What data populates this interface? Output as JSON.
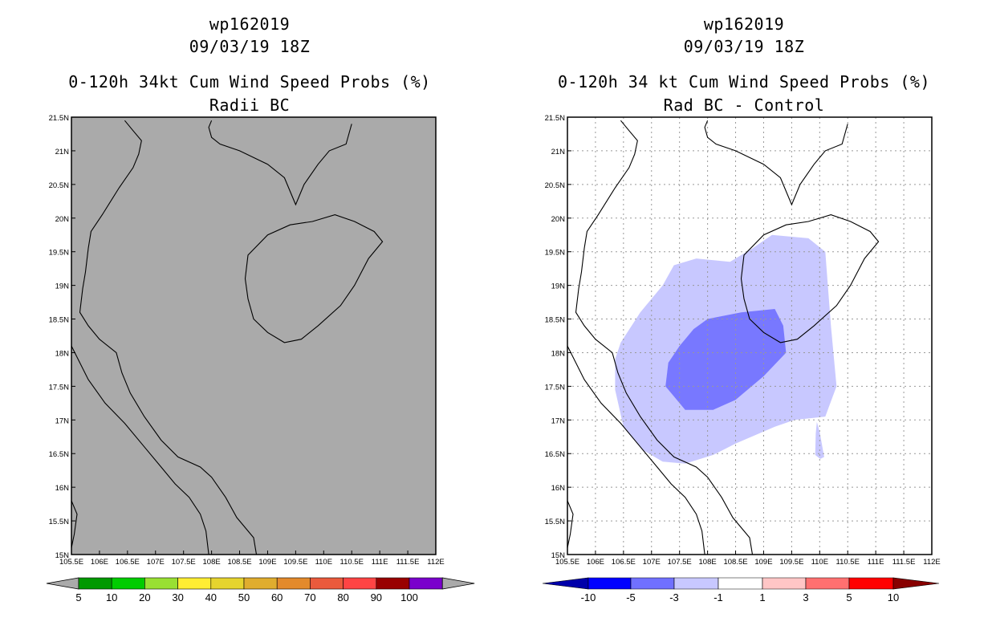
{
  "left_panel": {
    "storm_id": "wp162019",
    "datetime": "09/03/19 18Z",
    "title_line1": "0-120h 34kt Cum Wind Speed Probs (%)",
    "title_line2": "Radii BC",
    "fill_color": "#aaaaaa"
  },
  "right_panel": {
    "storm_id": "wp162019",
    "datetime": "09/03/19 18Z",
    "title_line1": "0-120h 34 kt Cum Wind Speed Probs (%)",
    "title_line2": "Rad BC - Control"
  },
  "chart_data": [
    {
      "type": "heatmap",
      "panel": "left",
      "title": "0-120h 34kt Cum Wind Speed Probs (%) — Radii BC",
      "x_ticks": [
        "105.5E",
        "106E",
        "106.5E",
        "107E",
        "107.5E",
        "108E",
        "108.5E",
        "109E",
        "109.5E",
        "110E",
        "110.5E",
        "111E",
        "111.5E",
        "112E"
      ],
      "y_ticks": [
        "15N",
        "15.5N",
        "16N",
        "16.5N",
        "17N",
        "17.5N",
        "18N",
        "18.5N",
        "19N",
        "19.5N",
        "20N",
        "20.5N",
        "21N",
        "21.5N"
      ],
      "xlim": [
        105.5,
        112
      ],
      "ylim": [
        15,
        21.5
      ],
      "field_value": "0 (uniform, below 5%)",
      "legend": {
        "labels": [
          "5",
          "10",
          "20",
          "30",
          "40",
          "50",
          "60",
          "70",
          "80",
          "90",
          "100"
        ],
        "colors": [
          "#009900",
          "#00cc00",
          "#99e033",
          "#ffee33",
          "#e6d42e",
          "#e0ad2e",
          "#e38a2c",
          "#ea5a3c",
          "#ff4444",
          "#990000",
          "#7a00cc"
        ],
        "below_color": "#aaaaaa",
        "above_color": "#aaaaaa"
      }
    },
    {
      "type": "heatmap",
      "panel": "right",
      "title": "0-120h 34 kt Cum Wind Speed Probs (%) — Rad BC - Control",
      "x_ticks": [
        "105.5E",
        "106E",
        "106.5E",
        "107E",
        "107.5E",
        "108E",
        "108.5E",
        "109E",
        "109.5E",
        "110E",
        "110.5E",
        "111E",
        "111.5E",
        "112E"
      ],
      "y_ticks": [
        "15N",
        "15.5N",
        "16N",
        "16.5N",
        "17N",
        "17.5N",
        "18N",
        "18.5N",
        "19N",
        "19.5N",
        "20N",
        "20.5N",
        "21N",
        "21.5N"
      ],
      "xlim": [
        105.5,
        112
      ],
      "ylim": [
        15,
        21.5
      ],
      "contours": [
        {
          "range": "-3 to -1",
          "color": "#c8c8ff",
          "polygon": [
            [
              107.4,
              19.3
            ],
            [
              107.8,
              19.4
            ],
            [
              108.4,
              19.35
            ],
            [
              108.8,
              19.55
            ],
            [
              109.15,
              19.75
            ],
            [
              109.8,
              19.7
            ],
            [
              110.1,
              19.5
            ],
            [
              110.2,
              18.4
            ],
            [
              110.3,
              17.5
            ],
            [
              110.1,
              17.05
            ],
            [
              109.55,
              17.0
            ],
            [
              109.2,
              16.9
            ],
            [
              108.5,
              16.65
            ],
            [
              108.1,
              16.48
            ],
            [
              107.6,
              16.35
            ],
            [
              107.2,
              16.38
            ],
            [
              106.85,
              16.55
            ],
            [
              106.5,
              16.9
            ],
            [
              106.35,
              17.45
            ],
            [
              106.35,
              17.9
            ],
            [
              106.45,
              18.15
            ],
            [
              106.8,
              18.6
            ],
            [
              107.2,
              19.0
            ]
          ]
        },
        {
          "range": "-3 to -1 (spur)",
          "color": "#c8c8ff",
          "polygon": [
            [
              109.95,
              16.97
            ],
            [
              110.0,
              16.82
            ],
            [
              110.08,
              16.45
            ],
            [
              110.01,
              16.42
            ],
            [
              109.92,
              16.48
            ],
            [
              109.93,
              16.8
            ]
          ]
        },
        {
          "range": "-5 to -3",
          "color": "#7878ff",
          "polygon": [
            [
              107.5,
              18.1
            ],
            [
              107.75,
              18.35
            ],
            [
              108.0,
              18.5
            ],
            [
              108.6,
              18.6
            ],
            [
              109.2,
              18.65
            ],
            [
              109.35,
              18.4
            ],
            [
              109.4,
              18.0
            ],
            [
              109.0,
              17.65
            ],
            [
              108.5,
              17.3
            ],
            [
              108.1,
              17.15
            ],
            [
              107.6,
              17.15
            ],
            [
              107.25,
              17.5
            ],
            [
              107.3,
              17.85
            ]
          ]
        }
      ],
      "legend": {
        "labels": [
          "-10",
          "-5",
          "-3",
          "-1",
          "1",
          "3",
          "5",
          "10"
        ],
        "colors": [
          "#0000aa",
          "#0000ff",
          "#7070ff",
          "#c8c8ff",
          "#ffffff",
          "#ffc6c6",
          "#ff7070",
          "#ff0000",
          "#880000"
        ]
      }
    }
  ]
}
